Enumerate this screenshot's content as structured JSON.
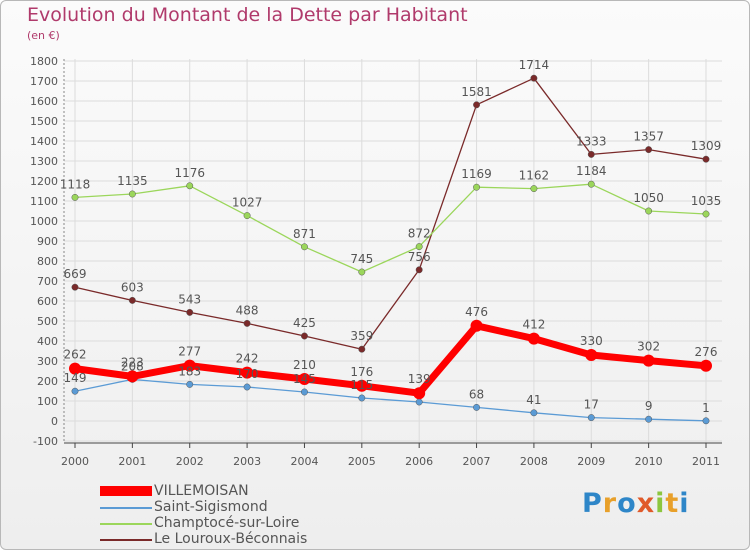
{
  "title": "Evolution du Montant de la Dette par Habitant",
  "subtitle": "(en €)",
  "brand": "Proxiti",
  "brand_colors": [
    "#2e86c8",
    "#e8a02a",
    "#2e86c8",
    "#e05a2a",
    "#8cc63f",
    "#e8a02a",
    "#2e86c8"
  ],
  "chart_data": {
    "type": "line",
    "title": "Evolution du Montant de la Dette par Habitant",
    "subtitle": "(en €)",
    "xlabel": "",
    "ylabel": "",
    "x": [
      "2000",
      "2001",
      "2002",
      "2003",
      "2004",
      "2005",
      "2006",
      "2007",
      "2008",
      "2009",
      "2010",
      "2011"
    ],
    "ylim": [
      -100,
      1800
    ],
    "yticks": [
      -100,
      0,
      100,
      200,
      300,
      400,
      500,
      600,
      700,
      800,
      900,
      1000,
      1100,
      1200,
      1300,
      1400,
      1500,
      1600,
      1700,
      1800
    ],
    "grid": true,
    "legend_position": "bottom-left",
    "series": [
      {
        "name": "VILLEMOISAN",
        "color": "#ff0000",
        "values": [
          262,
          223,
          277,
          242,
          210,
          176,
          139,
          476,
          412,
          330,
          302,
          276
        ],
        "labels": [
          "262",
          "223",
          "277",
          "242",
          "210",
          "176",
          "139",
          "476",
          "412",
          "330",
          "302",
          "276"
        ]
      },
      {
        "name": "Saint-Sigismond",
        "color": "#5b9bd5",
        "values": [
          149,
          208,
          183,
          170,
          145,
          115,
          95,
          68,
          41,
          17,
          9,
          1
        ],
        "labels": [
          "149",
          "208",
          "183",
          "170",
          "145",
          "115",
          "",
          "68",
          "41",
          "17",
          "9",
          "1"
        ]
      },
      {
        "name": "Champtocé-sur-Loire",
        "color": "#9bd65b",
        "values": [
          1118,
          1135,
          1176,
          1027,
          871,
          745,
          872,
          1169,
          1162,
          1184,
          1050,
          1035
        ],
        "labels": [
          "1118",
          "1135",
          "1176",
          "1027",
          "871",
          "745",
          "872",
          "1169",
          "1162",
          "1184",
          "1050",
          "1035"
        ]
      },
      {
        "name": "Le Louroux-Béconnais",
        "color": "#7a2a2a",
        "values": [
          669,
          603,
          543,
          488,
          425,
          359,
          756,
          1581,
          1714,
          1333,
          1357,
          1309
        ],
        "labels": [
          "669",
          "603",
          "543",
          "488",
          "425",
          "359",
          "756",
          "1581",
          "1714",
          "1333",
          "1357",
          "1309"
        ]
      }
    ]
  }
}
